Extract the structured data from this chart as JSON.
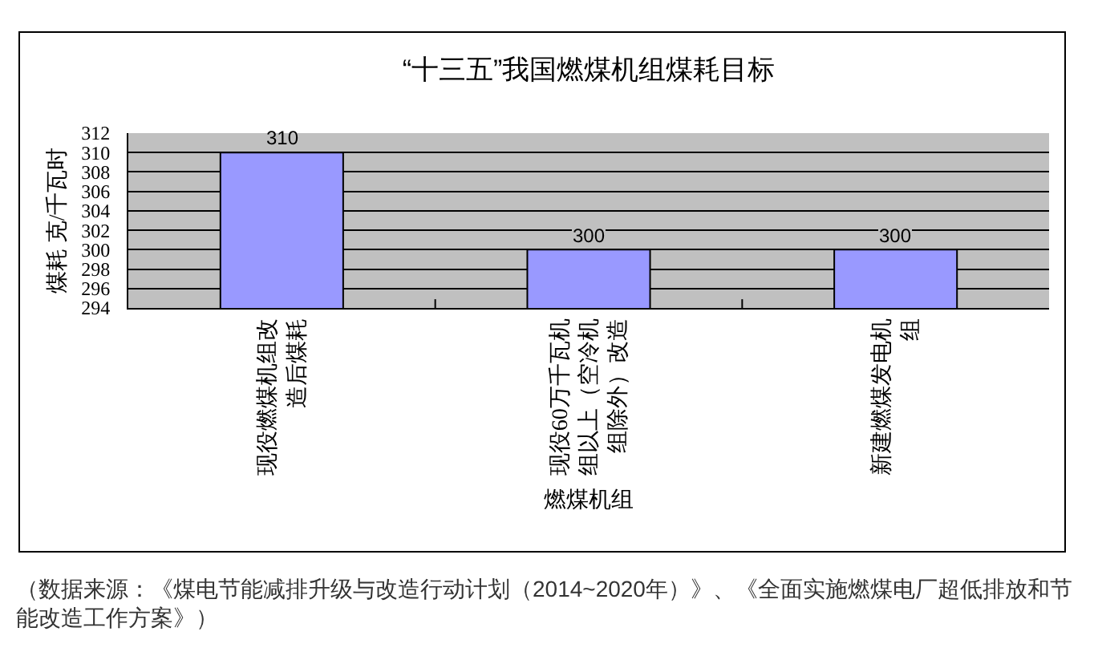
{
  "chart_data": {
    "type": "bar",
    "title": "“十三五”我国燃煤机组煤耗目标",
    "xlabel": "燃煤机组",
    "ylabel": "煤耗 克/千瓦时",
    "categories": [
      "现役燃煤机组改造后煤耗",
      "现役60万千瓦机组以上（空冷机组除外）改造",
      "新建燃煤发电机组"
    ],
    "values": [
      310,
      300,
      300
    ],
    "color": "#9999ff",
    "data_labels": true,
    "ylim": [
      294,
      312
    ],
    "yticks": [
      294,
      296,
      298,
      300,
      302,
      304,
      306,
      308,
      310,
      312
    ],
    "grid": "y",
    "annotations": [
      "（数据来源：《煤电节能减排升级与改造行动计划（2014~2020年）》、《全面实施燃煤电厂超低排放和节能改造工作方案》）"
    ]
  }
}
